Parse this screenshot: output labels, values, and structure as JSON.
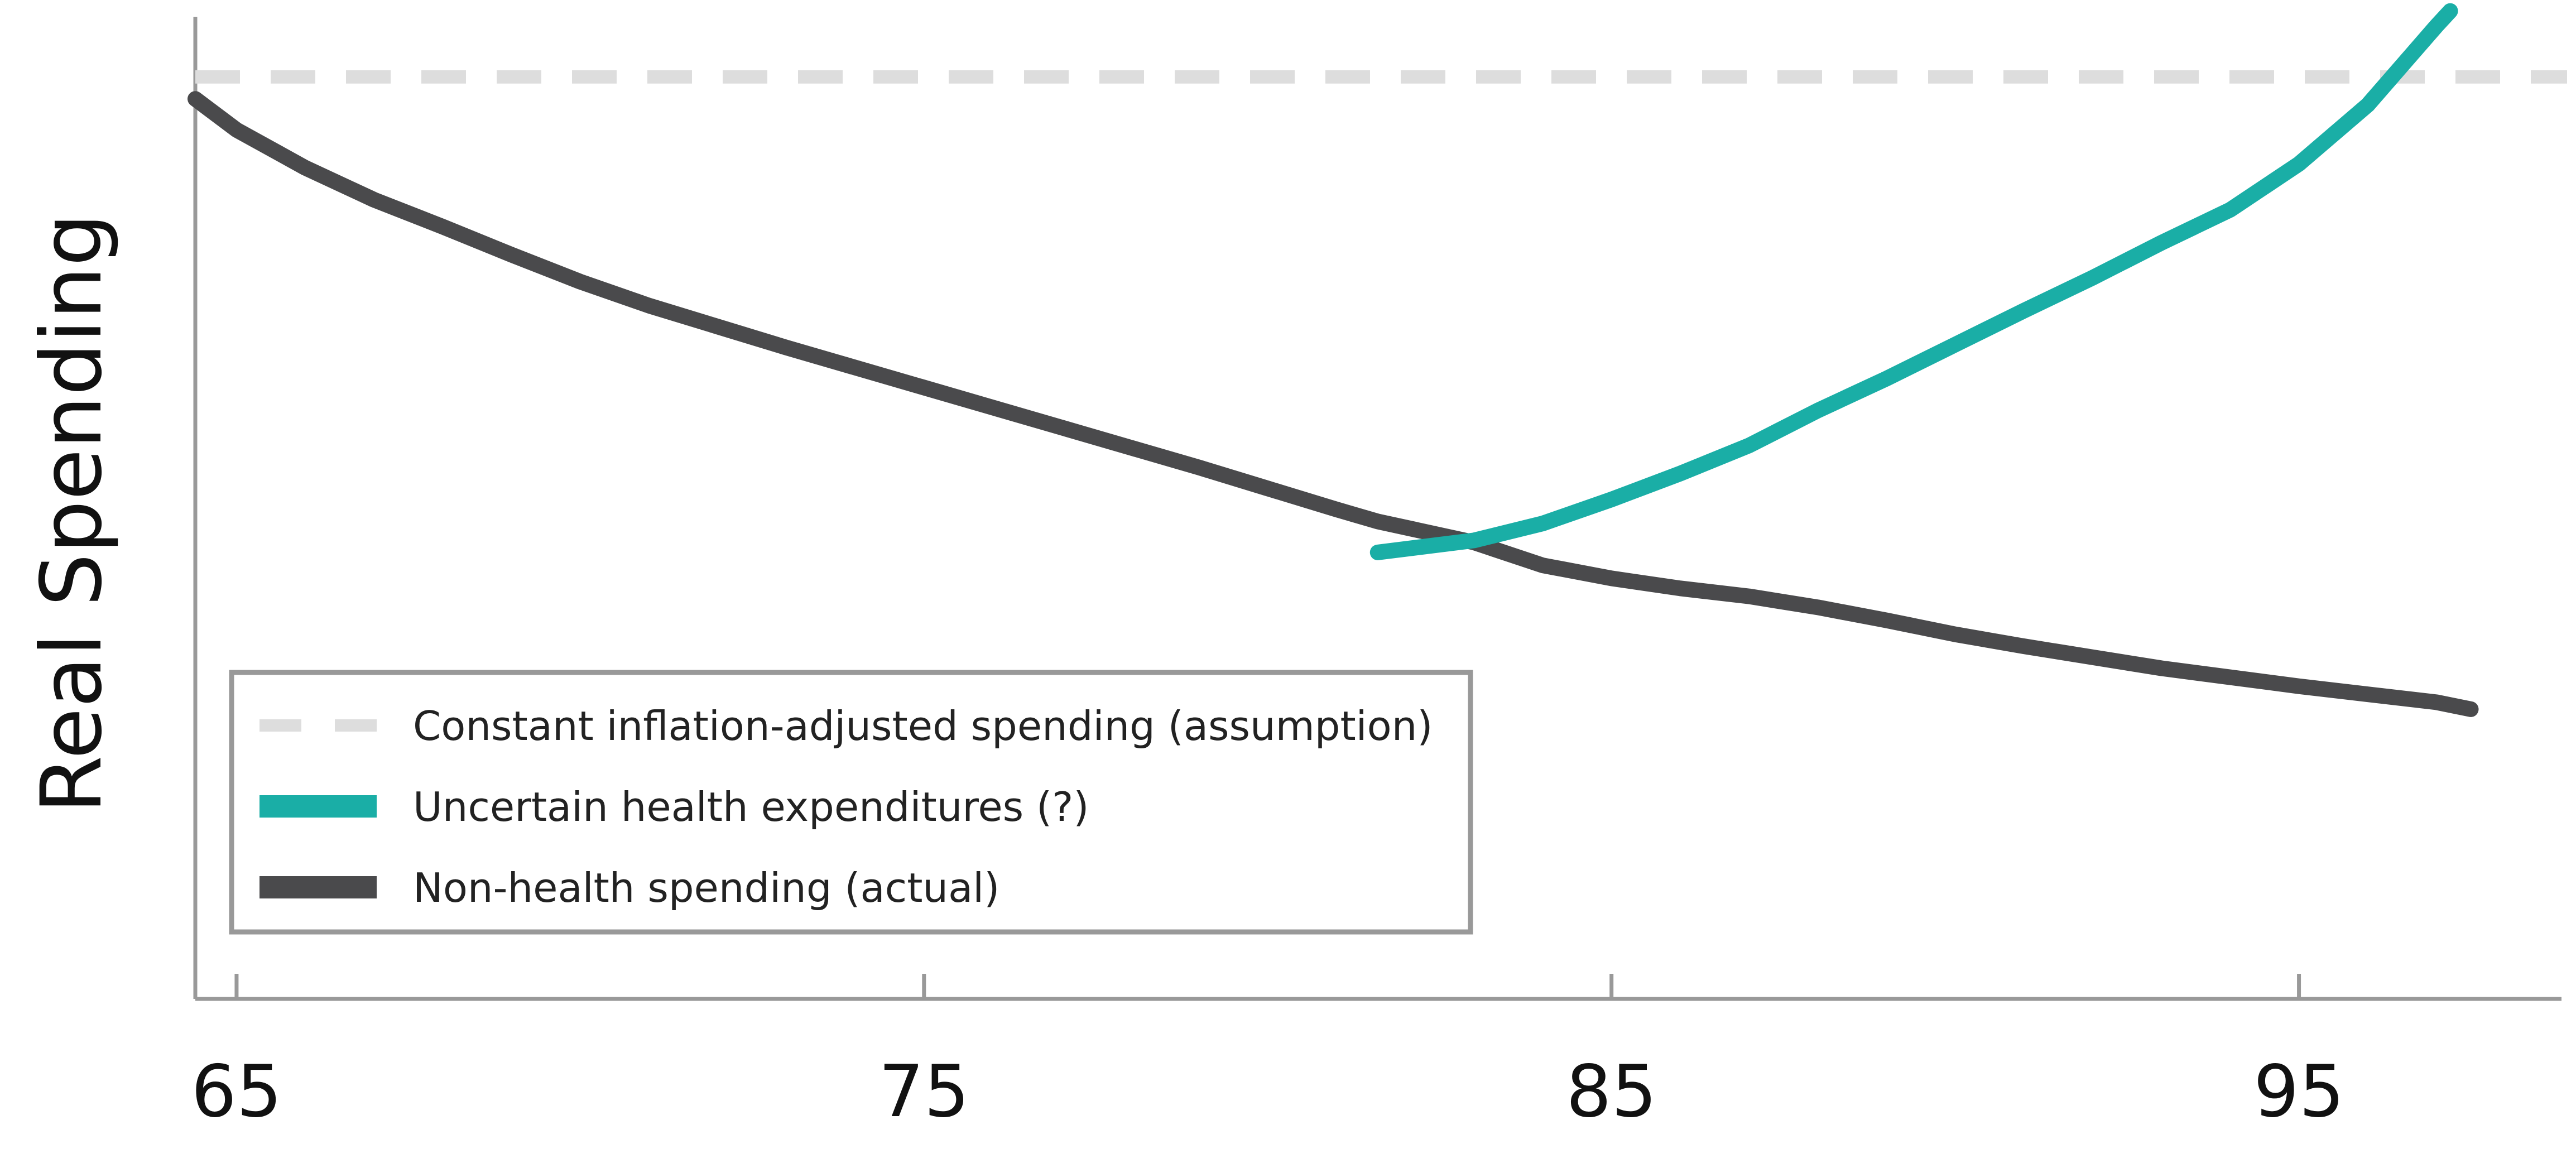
{
  "chart_data": {
    "type": "line",
    "title": "",
    "xlabel": "",
    "ylabel": "Real Spending",
    "xlim": [
      64.4,
      98.9
    ],
    "ylim": [
      0,
      100
    ],
    "x_ticks": [
      65,
      75,
      85,
      95
    ],
    "x_tick_labels": [
      "65",
      "75",
      "85",
      "95"
    ],
    "y_ticks_shown": false,
    "grid": false,
    "legend_position": "bottom-left",
    "series": [
      {
        "key": "constant",
        "name": "Constant inflation-adjusted spending (assumption)",
        "color": "#dddddd",
        "style": "dashed",
        "x": [
          64.4,
          98.9
        ],
        "y": [
          92.3,
          92.3
        ]
      },
      {
        "key": "health",
        "name": "Uncertain health expenditures (?)",
        "color": "#1aaea6",
        "style": "solid",
        "x": [
          81.6,
          83,
          84,
          85,
          86,
          87,
          88,
          89,
          90,
          91,
          92,
          93,
          94,
          95,
          96,
          97,
          97.2
        ],
        "y": [
          44.7,
          45.9,
          47.6,
          50.0,
          52.6,
          55.4,
          58.9,
          62.1,
          65.5,
          68.9,
          72.2,
          75.7,
          79.0,
          83.6,
          89.5,
          97.4,
          98.9
        ]
      },
      {
        "key": "nonhealth",
        "name": "Non-health spending (actual)",
        "color": "#4a4a4c",
        "style": "solid",
        "x": [
          64.4,
          65,
          66,
          67,
          68,
          69,
          70,
          71,
          72,
          73,
          74,
          75,
          76,
          77,
          78,
          79,
          80,
          81,
          81.6,
          83,
          84,
          85,
          86,
          87,
          88,
          89,
          90,
          91,
          92,
          93,
          94,
          95,
          96,
          97,
          97.5
        ],
        "y": [
          90.1,
          87.0,
          83.2,
          80.0,
          77.3,
          74.5,
          71.8,
          69.4,
          67.3,
          65.2,
          63.2,
          61.2,
          59.2,
          57.2,
          55.2,
          53.2,
          51.1,
          49.0,
          47.8,
          45.7,
          43.4,
          42.1,
          41.1,
          40.3,
          39.2,
          37.9,
          36.5,
          35.3,
          34.2,
          33.1,
          32.2,
          31.3,
          30.5,
          29.7,
          29.0
        ]
      }
    ]
  }
}
